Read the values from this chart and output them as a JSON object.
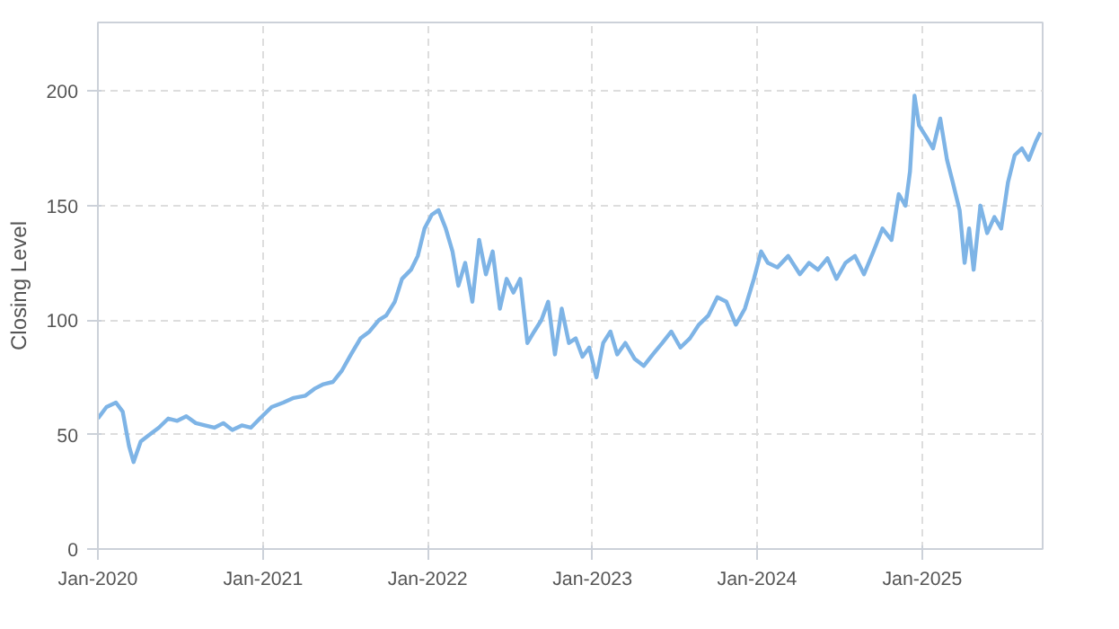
{
  "chart_data": {
    "type": "line",
    "ylabel": "Closing Level",
    "x": [
      "2020-01-01",
      "2020-01-20",
      "2020-02-10",
      "2020-02-25",
      "2020-03-10",
      "2020-03-20",
      "2020-04-05",
      "2020-04-25",
      "2020-05-15",
      "2020-06-05",
      "2020-06-25",
      "2020-07-15",
      "2020-08-05",
      "2020-08-25",
      "2020-09-15",
      "2020-10-05",
      "2020-10-25",
      "2020-11-15",
      "2020-12-05",
      "2020-12-25",
      "2021-01-20",
      "2021-02-15",
      "2021-03-10",
      "2021-04-05",
      "2021-04-25",
      "2021-05-15",
      "2021-06-05",
      "2021-06-25",
      "2021-07-15",
      "2021-08-05",
      "2021-08-25",
      "2021-09-15",
      "2021-10-01",
      "2021-10-20",
      "2021-11-05",
      "2021-11-25",
      "2021-12-10",
      "2021-12-25",
      "2022-01-10",
      "2022-01-25",
      "2022-02-10",
      "2022-02-25",
      "2022-03-10",
      "2022-03-25",
      "2022-04-10",
      "2022-04-25",
      "2022-05-10",
      "2022-05-25",
      "2022-06-10",
      "2022-06-25",
      "2022-07-10",
      "2022-07-25",
      "2022-08-10",
      "2022-08-25",
      "2022-09-10",
      "2022-09-25",
      "2022-10-10",
      "2022-10-25",
      "2022-11-10",
      "2022-11-25",
      "2022-12-10",
      "2022-12-25",
      "2023-01-10",
      "2023-01-25",
      "2023-02-10",
      "2023-02-25",
      "2023-03-15",
      "2023-04-05",
      "2023-04-25",
      "2023-05-15",
      "2023-06-05",
      "2023-06-25",
      "2023-07-15",
      "2023-08-05",
      "2023-08-25",
      "2023-09-15",
      "2023-10-05",
      "2023-10-25",
      "2023-11-15",
      "2023-12-05",
      "2023-12-25",
      "2024-01-10",
      "2024-01-25",
      "2024-02-15",
      "2024-03-10",
      "2024-04-05",
      "2024-04-25",
      "2024-05-15",
      "2024-06-05",
      "2024-06-25",
      "2024-07-15",
      "2024-08-05",
      "2024-08-25",
      "2024-09-15",
      "2024-10-05",
      "2024-10-25",
      "2024-11-10",
      "2024-11-25",
      "2024-12-05",
      "2024-12-15",
      "2024-12-25",
      "2025-01-10",
      "2025-01-25",
      "2025-02-10",
      "2025-02-25",
      "2025-03-10",
      "2025-03-25",
      "2025-04-05",
      "2025-04-15",
      "2025-04-25",
      "2025-05-10",
      "2025-05-25",
      "2025-06-10",
      "2025-06-25",
      "2025-07-10",
      "2025-07-25",
      "2025-08-10",
      "2025-08-25",
      "2025-09-10",
      "2025-09-20"
    ],
    "series": [
      {
        "color": "#7eb4e6",
        "values": [
          57,
          62,
          64,
          60,
          45,
          38,
          47,
          50,
          53,
          57,
          56,
          58,
          55,
          54,
          53,
          55,
          52,
          54,
          53,
          57,
          62,
          64,
          66,
          67,
          70,
          72,
          73,
          78,
          85,
          92,
          95,
          100,
          102,
          108,
          118,
          122,
          128,
          140,
          146,
          148,
          140,
          130,
          115,
          125,
          108,
          135,
          120,
          130,
          105,
          118,
          112,
          118,
          90,
          95,
          100,
          108,
          85,
          105,
          90,
          92,
          84,
          88,
          75,
          90,
          95,
          85,
          90,
          83,
          80,
          85,
          90,
          95,
          88,
          92,
          98,
          102,
          110,
          108,
          98,
          105,
          118,
          130,
          125,
          123,
          128,
          120,
          125,
          122,
          127,
          118,
          125,
          128,
          120,
          130,
          140,
          135,
          155,
          150,
          165,
          198,
          185,
          180,
          175,
          188,
          170,
          160,
          148,
          125,
          140,
          122,
          150,
          138,
          145,
          140,
          160,
          172,
          175,
          170,
          178,
          182
        ]
      }
    ],
    "xlim": [
      "2020-01-01",
      "2025-09-25"
    ],
    "ylim": [
      0,
      230
    ],
    "xticks": [
      {
        "value": "2020-01",
        "label": "Jan-2020"
      },
      {
        "value": "2021-01",
        "label": "Jan-2021"
      },
      {
        "value": "2022-01",
        "label": "Jan-2022"
      },
      {
        "value": "2023-01",
        "label": "Jan-2023"
      },
      {
        "value": "2024-01",
        "label": "Jan-2024"
      },
      {
        "value": "2025-01",
        "label": "Jan-2025"
      }
    ],
    "yticks": [
      0,
      50,
      100,
      150,
      200
    ],
    "grid": true,
    "line_style": "solid"
  }
}
